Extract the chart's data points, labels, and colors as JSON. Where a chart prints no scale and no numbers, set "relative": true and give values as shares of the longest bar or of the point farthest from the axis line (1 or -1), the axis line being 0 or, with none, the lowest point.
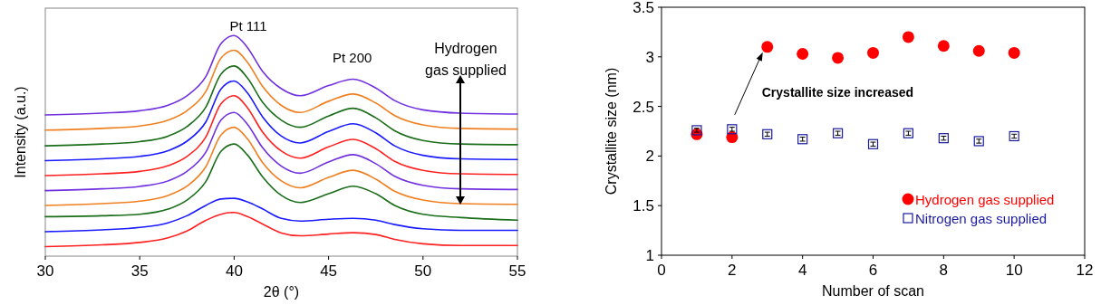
{
  "chart_data": [
    {
      "type": "line",
      "relative": true,
      "xlabel": "2θ (°)",
      "ylabel": "Intensity (a.u.)",
      "xlim": [
        30,
        55
      ],
      "xticks": [
        30,
        35,
        40,
        45,
        50,
        55
      ],
      "legend": false,
      "grid": false,
      "marker": "none",
      "line_style": "solid",
      "x": [
        30,
        33,
        35,
        36.5,
        37.5,
        38.5,
        39.3,
        40,
        40.7,
        41.5,
        42.5,
        43.5,
        45,
        46.3,
        47.5,
        48.5,
        50,
        52,
        55
      ],
      "annotations": [
        "Pt 111",
        "Pt 200",
        "Hydrogen\ngas supplied"
      ],
      "series": [
        {
          "color": "#ff2020",
          "values": [
            0.043,
            0.051,
            0.062,
            0.083,
            0.114,
            0.162,
            0.19,
            0.198,
            0.179,
            0.146,
            0.105,
            0.092,
            0.1,
            0.106,
            0.098,
            0.076,
            0.056,
            0.048,
            0.048
          ]
        },
        {
          "color": "#1a1aff",
          "values": [
            0.111,
            0.119,
            0.13,
            0.151,
            0.183,
            0.23,
            0.259,
            0.262,
            0.246,
            0.214,
            0.171,
            0.159,
            0.167,
            0.171,
            0.163,
            0.143,
            0.124,
            0.117,
            0.117
          ]
        },
        {
          "color": "#1a6e1a",
          "values": [
            0.179,
            0.183,
            0.19,
            0.213,
            0.254,
            0.338,
            0.475,
            0.508,
            0.459,
            0.36,
            0.275,
            0.243,
            0.283,
            0.317,
            0.283,
            0.23,
            0.19,
            0.175,
            0.163
          ]
        },
        {
          "color": "#f07f20",
          "values": [
            0.23,
            0.238,
            0.249,
            0.275,
            0.317,
            0.405,
            0.549,
            0.584,
            0.532,
            0.425,
            0.341,
            0.31,
            0.357,
            0.389,
            0.349,
            0.294,
            0.254,
            0.238,
            0.235
          ]
        },
        {
          "color": "#7030e0",
          "values": [
            0.297,
            0.305,
            0.316,
            0.341,
            0.384,
            0.471,
            0.616,
            0.651,
            0.598,
            0.492,
            0.408,
            0.376,
            0.427,
            0.46,
            0.419,
            0.362,
            0.321,
            0.305,
            0.302
          ]
        },
        {
          "color": "#ff2020",
          "values": [
            0.365,
            0.373,
            0.384,
            0.41,
            0.452,
            0.54,
            0.69,
            0.727,
            0.673,
            0.563,
            0.476,
            0.444,
            0.495,
            0.529,
            0.487,
            0.43,
            0.389,
            0.373,
            0.37
          ]
        },
        {
          "color": "#1a1aff",
          "values": [
            0.433,
            0.441,
            0.452,
            0.478,
            0.521,
            0.608,
            0.757,
            0.794,
            0.74,
            0.632,
            0.544,
            0.513,
            0.565,
            0.6,
            0.559,
            0.5,
            0.457,
            0.441,
            0.438
          ]
        },
        {
          "color": "#1a6e1a",
          "values": [
            0.5,
            0.508,
            0.519,
            0.544,
            0.587,
            0.675,
            0.825,
            0.862,
            0.808,
            0.698,
            0.616,
            0.584,
            0.635,
            0.67,
            0.627,
            0.568,
            0.524,
            0.508,
            0.505
          ]
        },
        {
          "color": "#f07f20",
          "values": [
            0.571,
            0.579,
            0.59,
            0.616,
            0.659,
            0.746,
            0.897,
            0.933,
            0.879,
            0.77,
            0.683,
            0.651,
            0.702,
            0.735,
            0.694,
            0.637,
            0.595,
            0.579,
            0.576
          ]
        },
        {
          "color": "#7030e0",
          "values": [
            0.64,
            0.648,
            0.659,
            0.684,
            0.727,
            0.814,
            0.963,
            1.0,
            0.946,
            0.838,
            0.759,
            0.727,
            0.773,
            0.802,
            0.762,
            0.705,
            0.663,
            0.648,
            0.644
          ]
        }
      ]
    },
    {
      "type": "scatter",
      "xlabel": "Number of scan",
      "ylabel": "Crystallite size (nm)",
      "xlim": [
        0,
        12
      ],
      "xticks": [
        0,
        2,
        4,
        6,
        8,
        10,
        12
      ],
      "ylim": [
        1,
        3.5
      ],
      "yticks": [
        1,
        1.5,
        2,
        2.5,
        3,
        3.5
      ],
      "legend": "bottom right",
      "grid": false,
      "x": [
        1,
        2,
        3,
        4,
        5,
        6,
        7,
        8,
        9,
        10
      ],
      "annotations": [
        {
          "text": "Crystallite size increased",
          "x": 3,
          "y": 3.1
        }
      ],
      "series": [
        {
          "name": "Hydrogen gas supplied",
          "color": "#ff0000",
          "marker": "circle",
          "values": [
            2.22,
            2.19,
            3.1,
            3.03,
            2.99,
            3.04,
            3.2,
            3.11,
            3.06,
            3.04
          ]
        },
        {
          "name": "Nitrogen gas supplied",
          "color": "#1a1aa0",
          "marker": "square",
          "values": [
            2.26,
            2.27,
            2.22,
            2.17,
            2.23,
            2.12,
            2.23,
            2.18,
            2.15,
            2.2
          ],
          "errors": [
            0.02,
            0.02,
            0.02,
            0.02,
            0.02,
            0.02,
            0.02,
            0.02,
            0.02,
            0.02
          ]
        }
      ]
    }
  ]
}
